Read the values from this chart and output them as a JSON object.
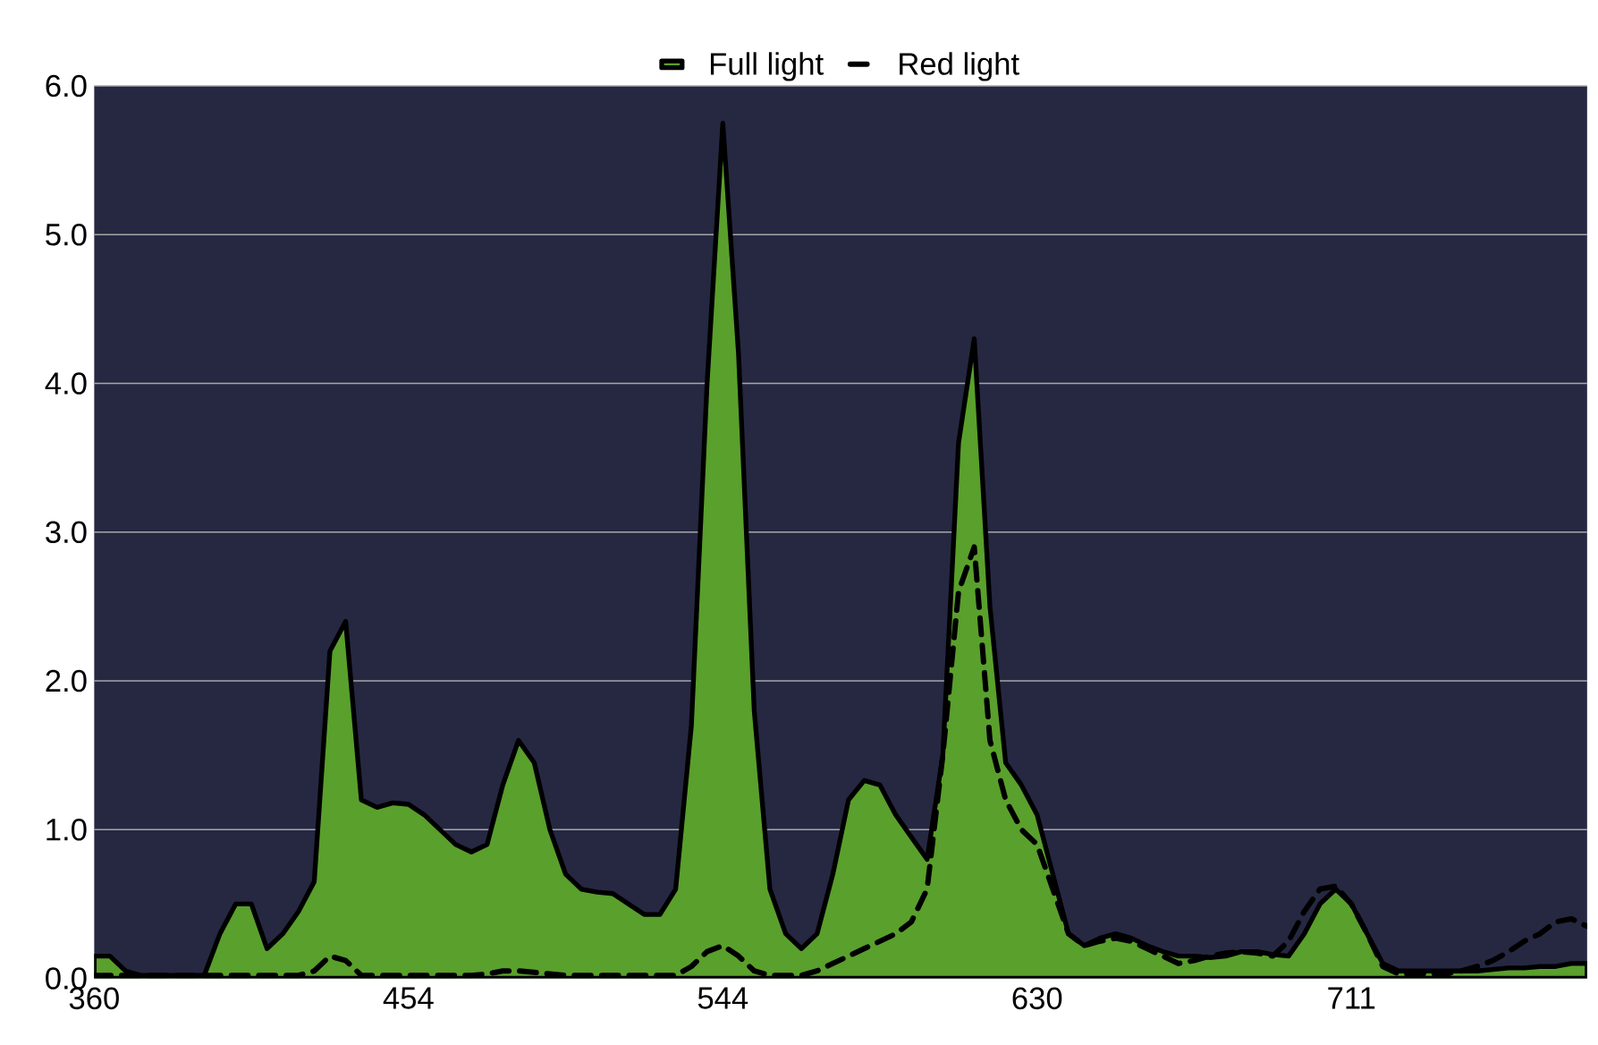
{
  "chart_data": {
    "type": "area",
    "categories": [
      "360",
      null,
      null,
      null,
      null,
      null,
      null,
      null,
      null,
      null,
      null,
      null,
      null,
      null,
      null,
      null,
      null,
      null,
      null,
      null,
      "454",
      null,
      null,
      null,
      null,
      null,
      null,
      null,
      null,
      null,
      null,
      null,
      null,
      null,
      null,
      null,
      null,
      null,
      null,
      null,
      "544",
      null,
      null,
      null,
      null,
      null,
      null,
      null,
      null,
      null,
      null,
      null,
      null,
      null,
      null,
      null,
      null,
      null,
      null,
      null,
      "630",
      null,
      null,
      null,
      null,
      null,
      null,
      null,
      null,
      null,
      null,
      null,
      null,
      null,
      null,
      null,
      null,
      null,
      null,
      null,
      "711",
      null,
      null,
      null,
      null,
      null,
      null,
      null,
      null,
      null,
      null,
      null,
      null,
      null,
      null,
      null
    ],
    "series": [
      {
        "name": "Full light",
        "color": "#5aa02c",
        "values": [
          0.15,
          0.15,
          0.05,
          0.02,
          0.02,
          0.02,
          0.02,
          0.02,
          0.3,
          0.5,
          0.5,
          0.2,
          0.3,
          0.45,
          0.65,
          2.2,
          2.4,
          1.2,
          1.15,
          1.18,
          1.17,
          1.1,
          1.0,
          0.9,
          0.85,
          0.9,
          1.3,
          1.6,
          1.45,
          1.0,
          0.7,
          0.6,
          0.58,
          0.57,
          0.5,
          0.43,
          0.43,
          0.6,
          1.7,
          4.0,
          5.75,
          4.2,
          1.8,
          0.6,
          0.3,
          0.2,
          0.3,
          0.7,
          1.2,
          1.33,
          1.3,
          1.1,
          0.95,
          0.8,
          1.5,
          3.6,
          4.3,
          2.5,
          1.45,
          1.3,
          1.1,
          0.7,
          0.3,
          0.22,
          0.27,
          0.3,
          0.27,
          0.22,
          0.18,
          0.15,
          0.15,
          0.14,
          0.15,
          0.18,
          0.18,
          0.16,
          0.15,
          0.3,
          0.5,
          0.6,
          0.5,
          0.3,
          0.1,
          0.05,
          0.05,
          0.05,
          0.05,
          0.05,
          0.05,
          0.06,
          0.07,
          0.07,
          0.08,
          0.08,
          0.1,
          0.1
        ]
      },
      {
        "name": "Red light",
        "type": "line",
        "line_style": "dashed",
        "color": "#000000",
        "values": [
          0.02,
          0.02,
          0.02,
          0.02,
          0.02,
          0.02,
          0.02,
          0.02,
          0.02,
          0.02,
          0.02,
          0.02,
          0.02,
          0.02,
          0.05,
          0.15,
          0.12,
          0.02,
          0.02,
          0.02,
          0.02,
          0.02,
          0.02,
          0.02,
          0.02,
          0.03,
          0.05,
          0.05,
          0.04,
          0.03,
          0.02,
          0.02,
          0.02,
          0.02,
          0.02,
          0.02,
          0.02,
          0.02,
          0.08,
          0.18,
          0.22,
          0.15,
          0.05,
          0.02,
          0.02,
          0.02,
          0.05,
          0.1,
          0.15,
          0.2,
          0.25,
          0.3,
          0.38,
          0.6,
          1.5,
          2.6,
          2.9,
          1.6,
          1.2,
          1.0,
          0.9,
          0.6,
          0.3,
          0.22,
          0.25,
          0.27,
          0.25,
          0.2,
          0.15,
          0.1,
          0.12,
          0.15,
          0.17,
          0.18,
          0.17,
          0.15,
          0.25,
          0.45,
          0.6,
          0.62,
          0.5,
          0.3,
          0.08,
          0.03,
          0.03,
          0.03,
          0.03,
          0.05,
          0.08,
          0.12,
          0.18,
          0.25,
          0.3,
          0.38,
          0.4,
          0.35
        ]
      }
    ],
    "ylim": [
      0,
      6
    ],
    "yticks": [
      {
        "value": 0,
        "label": "0.0"
      },
      {
        "value": 1,
        "label": "1.0"
      },
      {
        "value": 2,
        "label": "2.0"
      },
      {
        "value": 3,
        "label": "3.0"
      },
      {
        "value": 4,
        "label": "4.0"
      },
      {
        "value": 5,
        "label": "5.0"
      },
      {
        "value": 6,
        "label": "6.0"
      }
    ],
    "grid": "y",
    "legend": "top"
  }
}
